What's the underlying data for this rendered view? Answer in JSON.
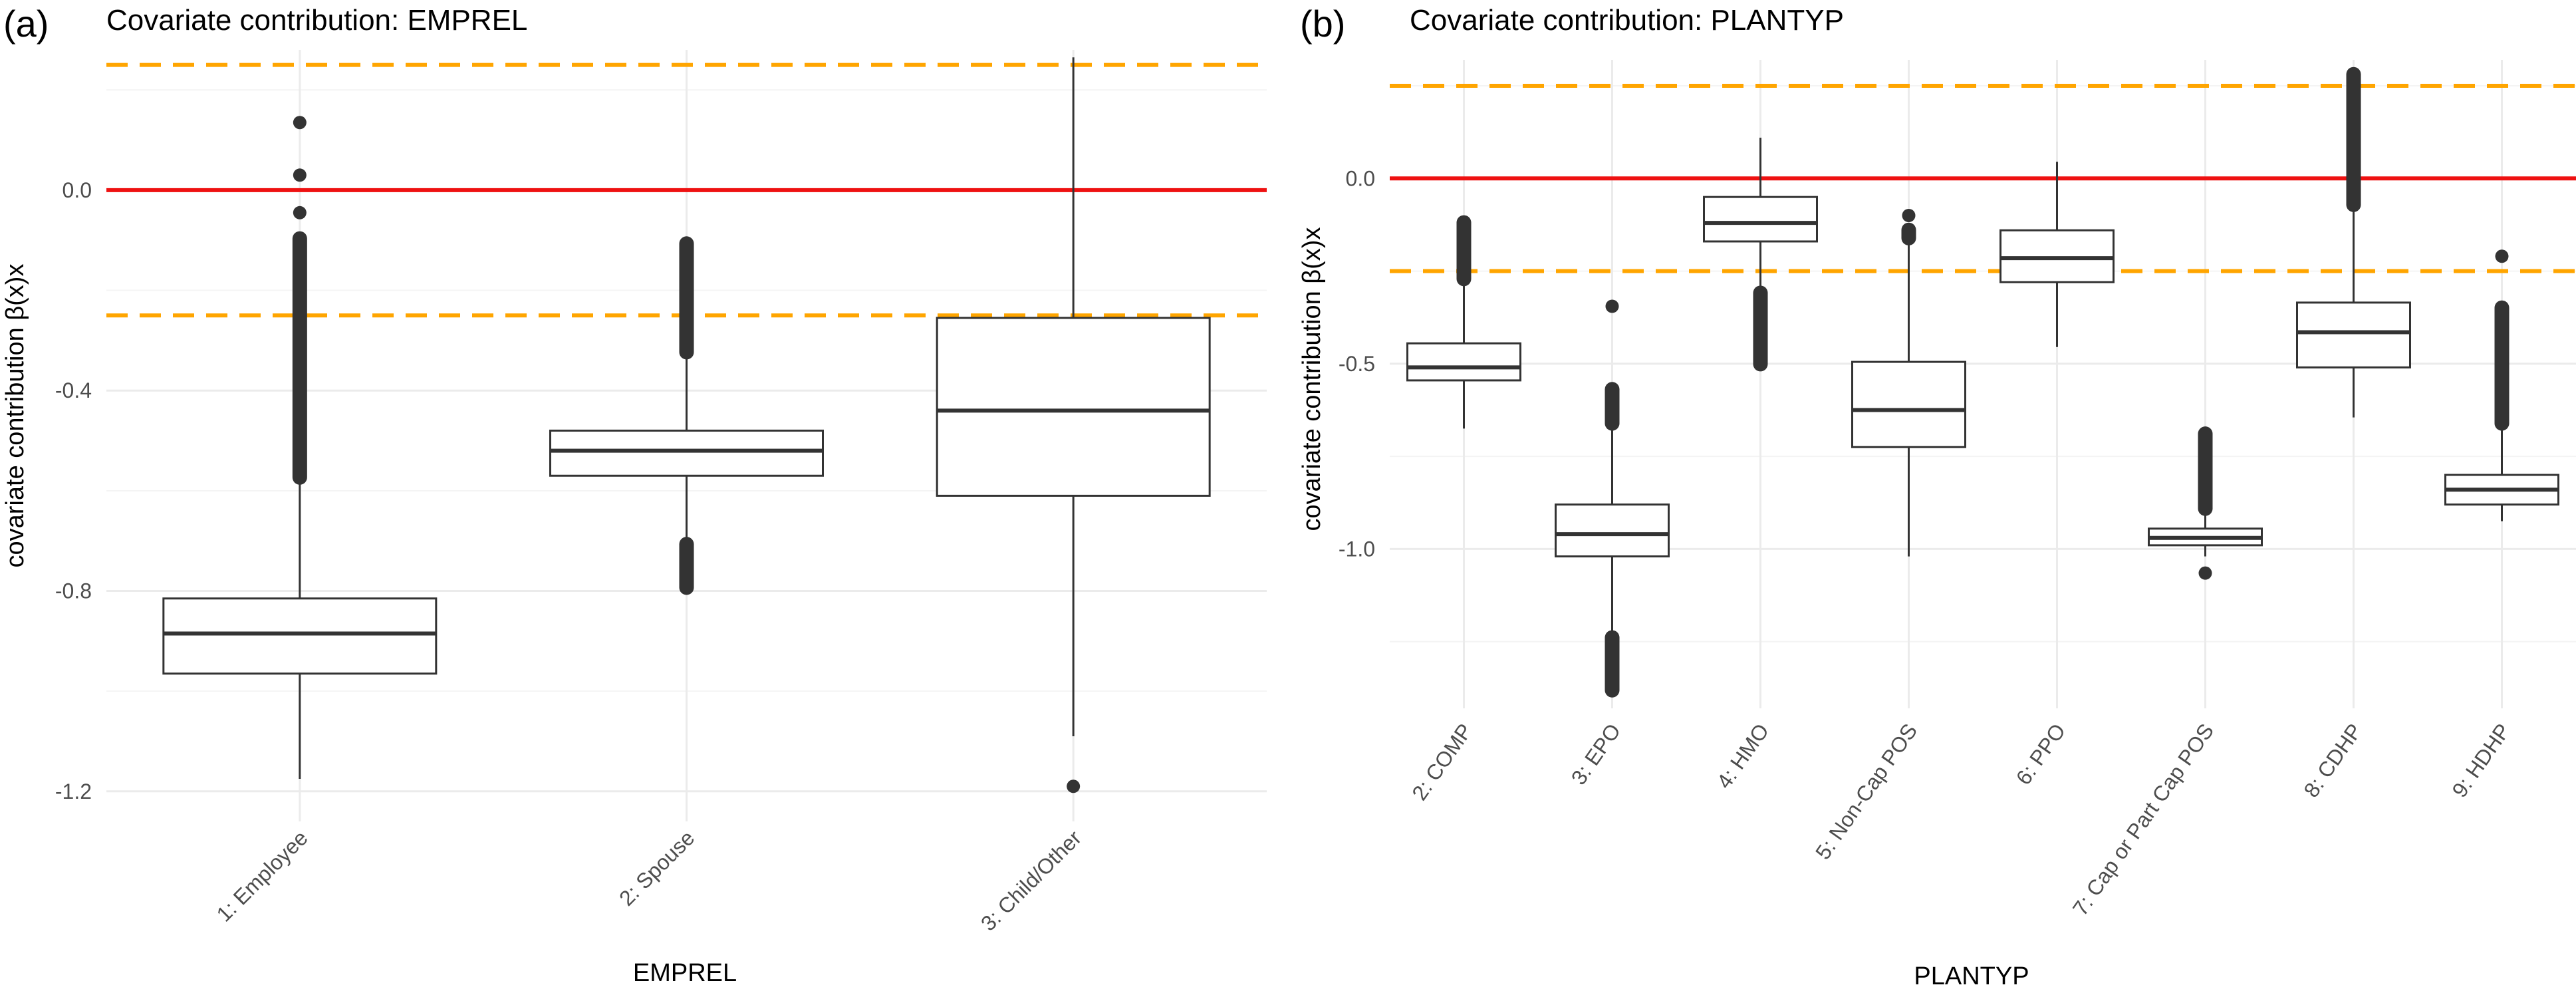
{
  "chart_data": [
    {
      "panel_label": "(a)",
      "type": "box",
      "title": "Covariate contribution: EMPREL",
      "xlabel": "EMPREL",
      "ylabel": "covariate contribution β(x)x",
      "ylim": [
        -1.26,
        0.28
      ],
      "yticks": [
        0.0,
        -0.4,
        -0.8,
        -1.2
      ],
      "ytick_labels": [
        "0.0",
        "-0.4",
        "-0.8",
        "-1.2"
      ],
      "reference_lines": [
        {
          "value": 0.0,
          "color": "#ee1111",
          "style": "solid"
        },
        {
          "value": 0.25,
          "color": "#ffa500",
          "style": "dashed"
        },
        {
          "value": -0.25,
          "color": "#ffa500",
          "style": "dashed"
        }
      ],
      "categories": [
        "1: Employee",
        "2: Spouse",
        "3: Child/Other"
      ],
      "boxes": [
        {
          "q1": -0.965,
          "median": -0.885,
          "q3": -0.815,
          "whisker_low": -1.175,
          "whisker_high": -0.58,
          "outliers": [
            0.135,
            0.03,
            -0.045
          ],
          "outlier_band": [
            -0.58,
            -0.09
          ]
        },
        {
          "q1": -0.57,
          "median": -0.52,
          "q3": -0.48,
          "whisker_low": -0.7,
          "whisker_high": -0.33,
          "outliers": [],
          "outlier_band": [
            -0.33,
            -0.1
          ],
          "outlier_band_2": [
            -0.8,
            -0.7
          ]
        },
        {
          "q1": -0.61,
          "median": -0.44,
          "q3": -0.255,
          "whisker_low": -1.09,
          "whisker_high": 0.265,
          "outliers": [
            -1.19
          ]
        }
      ]
    },
    {
      "panel_label": "(b)",
      "type": "box",
      "title": "Covariate contribution: PLANTYP",
      "xlabel": "PLANTYP",
      "ylabel": "covariate contribution β(x)x",
      "ylim": [
        -1.43,
        0.32
      ],
      "yticks": [
        0.0,
        -0.5,
        -1.0
      ],
      "ytick_labels": [
        "0.0",
        "-0.5",
        "-1.0"
      ],
      "reference_lines": [
        {
          "value": 0.0,
          "color": "#ee1111",
          "style": "solid"
        },
        {
          "value": 0.25,
          "color": "#ffa500",
          "style": "dashed"
        },
        {
          "value": -0.25,
          "color": "#ffa500",
          "style": "dashed"
        }
      ],
      "categories": [
        "2: COMP",
        "3: EPO",
        "4: HMO",
        "5: Non-Cap POS",
        "6: PPO",
        "7: Cap or Part Cap POS",
        "8: CDHP",
        "9: HDHP"
      ],
      "boxes": [
        {
          "q1": -0.545,
          "median": -0.51,
          "q3": -0.445,
          "whisker_low": -0.675,
          "whisker_high": -0.28,
          "outliers": [],
          "outlier_band": [
            -0.28,
            -0.11
          ]
        },
        {
          "q1": -1.02,
          "median": -0.96,
          "q3": -0.88,
          "whisker_low": -1.23,
          "whisker_high": -0.67,
          "outliers": [
            -0.345
          ],
          "outlier_band": [
            -0.67,
            -0.56
          ],
          "outlier_band_2": [
            -1.39,
            -1.23
          ]
        },
        {
          "q1": -0.17,
          "median": -0.12,
          "q3": -0.05,
          "whisker_low": -0.3,
          "whisker_high": 0.11,
          "outliers": [],
          "outlier_band": [
            -0.51,
            -0.3
          ]
        },
        {
          "q1": -0.725,
          "median": -0.625,
          "q3": -0.495,
          "whisker_low": -1.02,
          "whisker_high": -0.17,
          "outliers": [
            -0.1
          ],
          "outlier_band": [
            -0.17,
            -0.13
          ]
        },
        {
          "q1": -0.28,
          "median": -0.215,
          "q3": -0.14,
          "whisker_low": -0.455,
          "whisker_high": 0.045,
          "outliers": []
        },
        {
          "q1": -0.99,
          "median": -0.97,
          "q3": -0.945,
          "whisker_low": -1.02,
          "whisker_high": -0.9,
          "outliers": [
            -1.065
          ],
          "outlier_band": [
            -0.9,
            -0.68
          ]
        },
        {
          "q1": -0.51,
          "median": -0.415,
          "q3": -0.335,
          "whisker_low": -0.645,
          "whisker_high": -0.08,
          "outliers": [],
          "outlier_band": [
            -0.08,
            0.29
          ]
        },
        {
          "q1": -0.88,
          "median": -0.84,
          "q3": -0.8,
          "whisker_low": -0.925,
          "whisker_high": -0.67,
          "outliers": [
            -0.21
          ],
          "outlier_band": [
            -0.67,
            -0.34
          ]
        }
      ]
    }
  ]
}
